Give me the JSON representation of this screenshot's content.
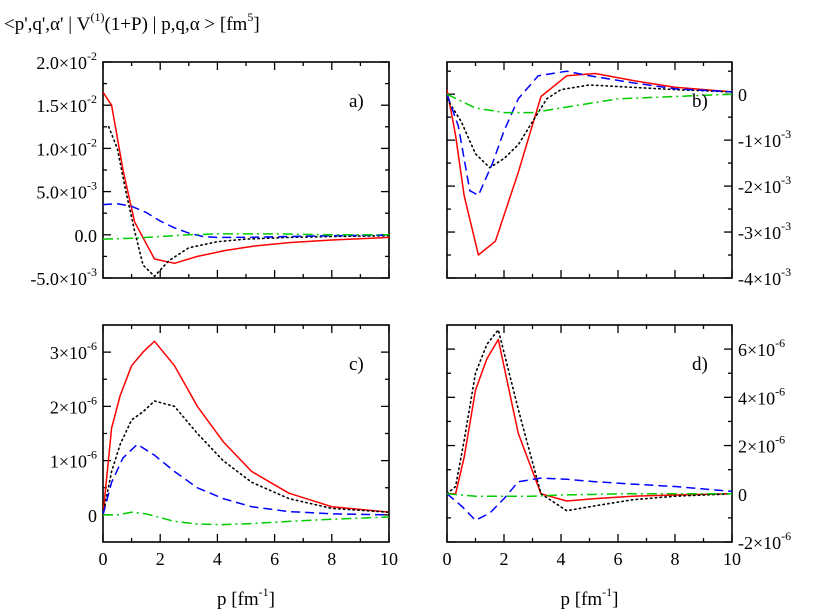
{
  "figure": {
    "title_left": "<p',q',α' | V",
    "title_sup": "(1)",
    "title_right": "(1+P) | p,q,α > [fm",
    "title_unit_sup": "5",
    "title_end": "]"
  },
  "colors": {
    "solid": "#ff0000",
    "dotted": "#000000",
    "dashed": "#0000ff",
    "dashdot": "#00cc00"
  },
  "chart_data": [
    {
      "type": "line",
      "panel": "a)",
      "label": "a)",
      "xlim": [
        0,
        10
      ],
      "ylim": [
        -0.005,
        0.02
      ],
      "xticks": [
        0,
        2,
        4,
        6,
        8,
        10
      ],
      "show_xticklabels": false,
      "yaxis_side": "left",
      "ytick_scale_exp": null,
      "yticks": [
        {
          "value": -0.005,
          "mant": "-5.0×10",
          "exp": "-3"
        },
        {
          "value": 0.0,
          "mant": "0.0",
          "exp": ""
        },
        {
          "value": 0.005,
          "mant": "5.0×10",
          "exp": "-3"
        },
        {
          "value": 0.01,
          "mant": "1.0×10",
          "exp": "-2"
        },
        {
          "value": 0.015,
          "mant": "1.5×10",
          "exp": "-2"
        },
        {
          "value": 0.02,
          "mant": "2.0×10",
          "exp": "-2"
        }
      ],
      "series": [
        {
          "name": "solid",
          "style": "solid",
          "x": [
            0,
            0.3,
            0.7,
            1.1,
            1.8,
            2.5,
            3.3,
            4.3,
            5.3,
            6.5,
            8,
            10
          ],
          "y": [
            0.0165,
            0.015,
            0.0075,
            0.0015,
            -0.0028,
            -0.0033,
            -0.0025,
            -0.0018,
            -0.0013,
            -0.0009,
            -0.0006,
            -0.0003
          ]
        },
        {
          "name": "dotted",
          "style": "dotted",
          "x": [
            0.2,
            0.5,
            0.8,
            1.1,
            1.4,
            1.8,
            2.3,
            3,
            4,
            5,
            6.5,
            8,
            10
          ],
          "y": [
            0.0125,
            0.01,
            0.005,
            0.0005,
            -0.0035,
            -0.0048,
            -0.003,
            -0.0015,
            -0.0008,
            -0.0005,
            -0.0003,
            -0.0002,
            -0.0001
          ]
        },
        {
          "name": "dashed",
          "style": "dashed",
          "x": [
            0,
            0.5,
            1,
            1.5,
            2,
            2.5,
            3,
            3.5,
            4,
            5,
            6.5,
            8,
            10
          ],
          "y": [
            0.0035,
            0.0036,
            0.0033,
            0.0026,
            0.0016,
            0.0008,
            0.0002,
            -0.0002,
            -0.0003,
            -0.0003,
            -0.0002,
            -0.0001,
            -5e-05
          ]
        },
        {
          "name": "dashdot",
          "style": "dashdot",
          "x": [
            0,
            1,
            2,
            3,
            4,
            5,
            6,
            8,
            10
          ],
          "y": [
            -0.0005,
            -0.0004,
            -0.0002,
            0.0,
            0.0001,
            0.0001,
            0.0001,
            0.0,
            0.0
          ]
        }
      ]
    },
    {
      "type": "line",
      "panel": "b)",
      "label": "b)",
      "xlim": [
        0,
        10
      ],
      "ylim": [
        -0.004,
        0.0007
      ],
      "xticks": [
        0,
        2,
        4,
        6,
        8,
        10
      ],
      "show_xticklabels": false,
      "yaxis_side": "right",
      "yticks": [
        {
          "value": -0.004,
          "mant": "-4×10",
          "exp": "-3"
        },
        {
          "value": -0.003,
          "mant": "-3×10",
          "exp": "-3"
        },
        {
          "value": -0.002,
          "mant": "-2×10",
          "exp": "-3"
        },
        {
          "value": -0.001,
          "mant": "-1×10",
          "exp": "-3"
        },
        {
          "value": 0.0,
          "mant": "0",
          "exp": ""
        }
      ],
      "series": [
        {
          "name": "solid",
          "style": "solid",
          "x": [
            0,
            0.3,
            0.6,
            1.1,
            1.7,
            2.5,
            3.3,
            4.2,
            5.2,
            6.5,
            8,
            10
          ],
          "y": [
            0.0001,
            -0.0009,
            -0.0022,
            -0.0035,
            -0.0032,
            -0.0017,
            -5e-05,
            0.0004,
            0.00045,
            0.0003,
            0.00015,
            5e-05
          ]
        },
        {
          "name": "dotted",
          "style": "dotted",
          "x": [
            0,
            0.5,
            1,
            1.5,
            2,
            2.5,
            3,
            3.5,
            4,
            5,
            6.5,
            8,
            10
          ],
          "y": [
            -0.0001,
            -0.0006,
            -0.0013,
            -0.0016,
            -0.0014,
            -0.0011,
            -0.0006,
            -0.0001,
            0.0001,
            0.0002,
            0.00015,
            0.0001,
            5e-05
          ]
        },
        {
          "name": "dashed",
          "style": "dashed",
          "x": [
            0,
            0.4,
            0.8,
            1.1,
            1.6,
            2,
            2.5,
            3.2,
            4.2,
            5,
            6.5,
            8,
            10
          ],
          "y": [
            0.0,
            -0.0007,
            -0.0021,
            -0.0022,
            -0.0015,
            -0.0008,
            -0.0001,
            0.0004,
            0.0005,
            0.0004,
            0.00025,
            0.00012,
            5e-05
          ]
        },
        {
          "name": "dashdot",
          "style": "dashdot",
          "x": [
            0,
            1,
            2,
            3,
            4,
            5,
            6,
            8,
            10
          ],
          "y": [
            0.0,
            -0.0003,
            -0.0004,
            -0.0004,
            -0.0003,
            -0.0002,
            -0.0001,
            -5e-05,
            0.0
          ]
        }
      ]
    },
    {
      "type": "line",
      "panel": "c)",
      "label": "c)",
      "xlim": [
        0,
        10
      ],
      "ylim": [
        -5e-07,
        3.5e-06
      ],
      "xticks": [
        0,
        2,
        4,
        6,
        8,
        10
      ],
      "xticklabels": [
        "0",
        "2",
        "4",
        "6",
        "8",
        "10"
      ],
      "show_xticklabels": true,
      "xlabel_main": "p [fm",
      "xlabel_sup": "-1",
      "xlabel_end": "]",
      "yaxis_side": "left",
      "yticks": [
        {
          "value": 0.0,
          "mant": "0",
          "exp": ""
        },
        {
          "value": 1e-06,
          "mant": "1×10",
          "exp": "-6"
        },
        {
          "value": 2e-06,
          "mant": "2×10",
          "exp": "-6"
        },
        {
          "value": 3e-06,
          "mant": "3×10",
          "exp": "-6"
        }
      ],
      "series": [
        {
          "name": "solid",
          "style": "solid",
          "x": [
            0,
            0.3,
            0.6,
            1,
            1.4,
            1.8,
            2.5,
            3.3,
            4.2,
            5.2,
            6.5,
            8,
            10
          ],
          "y": [
            0.0,
            1.6e-06,
            2.2e-06,
            2.75e-06,
            3e-06,
            3.2e-06,
            2.75e-06,
            2e-06,
            1.35e-06,
            8e-07,
            4e-07,
            1.5e-07,
            5e-08
          ]
        },
        {
          "name": "dotted",
          "style": "dotted",
          "x": [
            0,
            0.3,
            0.6,
            1,
            1.4,
            1.8,
            2.5,
            3.3,
            4.2,
            5.2,
            6.5,
            8,
            10
          ],
          "y": [
            0.0,
            8e-07,
            1.3e-06,
            1.75e-06,
            1.9e-06,
            2.1e-06,
            2e-06,
            1.5e-06,
            1e-06,
            6e-07,
            3e-07,
            1.2e-07,
            5e-08
          ]
        },
        {
          "name": "dashed",
          "style": "dashed",
          "x": [
            0,
            0.3,
            0.7,
            1.2,
            1.8,
            2.5,
            3.3,
            4.2,
            5.2,
            6.5,
            8,
            10
          ],
          "y": [
            0.0,
            6e-07,
            1.05e-06,
            1.3e-06,
            1.1e-06,
            8e-07,
            5e-07,
            3e-07,
            1.5e-07,
            6e-08,
            2e-08,
            0.0
          ]
        },
        {
          "name": "dashdot",
          "style": "dashdot",
          "x": [
            0,
            0.5,
            1,
            1.5,
            2,
            2.5,
            3.3,
            4.2,
            5.2,
            6.5,
            8,
            10
          ],
          "y": [
            0.0,
            0.0,
            5e-08,
            2e-08,
            -5e-08,
            -1.2e-07,
            -1.7e-07,
            -1.8e-07,
            -1.6e-07,
            -1.2e-07,
            -8e-08,
            -4e-08
          ]
        }
      ]
    },
    {
      "type": "line",
      "panel": "d)",
      "label": "d)",
      "xlim": [
        0,
        10
      ],
      "ylim": [
        -2e-06,
        7e-06
      ],
      "xticks": [
        0,
        2,
        4,
        6,
        8,
        10
      ],
      "xticklabels": [
        "0",
        "2",
        "4",
        "6",
        "8",
        "10"
      ],
      "show_xticklabels": true,
      "xlabel_main": "p [fm",
      "xlabel_sup": "-1",
      "xlabel_end": "]",
      "yaxis_side": "right",
      "yticks": [
        {
          "value": -2e-06,
          "mant": "-2×10",
          "exp": "-6"
        },
        {
          "value": 0.0,
          "mant": "0",
          "exp": ""
        },
        {
          "value": 2e-06,
          "mant": "2×10",
          "exp": "-6"
        },
        {
          "value": 4e-06,
          "mant": "4×10",
          "exp": "-6"
        },
        {
          "value": 6e-06,
          "mant": "6×10",
          "exp": "-6"
        }
      ],
      "series": [
        {
          "name": "solid",
          "style": "solid",
          "x": [
            0,
            0.3,
            0.6,
            1,
            1.4,
            1.8,
            2.5,
            3.3,
            4.2,
            5.2,
            6.5,
            8,
            10
          ],
          "y": [
            0.0,
            0.0,
            1.5e-06,
            4.3e-06,
            5.6e-06,
            6.4e-06,
            2.5e-06,
            0.0,
            -3e-07,
            -2e-07,
            -1e-07,
            -5e-08,
            0.0
          ]
        },
        {
          "name": "dotted",
          "style": "dotted",
          "x": [
            0,
            0.3,
            0.6,
            1,
            1.4,
            1.8,
            2.5,
            3.3,
            4.2,
            5.2,
            6.5,
            8,
            10
          ],
          "y": [
            0.0,
            3e-07,
            2.2e-06,
            5e-06,
            6.2e-06,
            6.8e-06,
            3.5e-06,
            0.0,
            -7e-07,
            -5e-07,
            -2.5e-07,
            -1e-07,
            0.0
          ]
        },
        {
          "name": "dashed",
          "style": "dashed",
          "x": [
            0,
            0.5,
            1,
            1.5,
            2,
            2.5,
            3.3,
            4.2,
            5.2,
            6.5,
            8,
            10
          ],
          "y": [
            0.0,
            -5e-07,
            -1.1e-06,
            -8e-07,
            -2e-07,
            5e-07,
            6.5e-07,
            6e-07,
            5e-07,
            4e-07,
            3e-07,
            1e-07
          ]
        },
        {
          "name": "dashdot",
          "style": "dashdot",
          "x": [
            0,
            1,
            2,
            3,
            4,
            5,
            6,
            8,
            10
          ],
          "y": [
            0.0,
            -1e-07,
            -1e-07,
            -1e-07,
            -5e-08,
            -3e-08,
            0.0,
            0.0,
            0.0
          ]
        }
      ]
    }
  ]
}
